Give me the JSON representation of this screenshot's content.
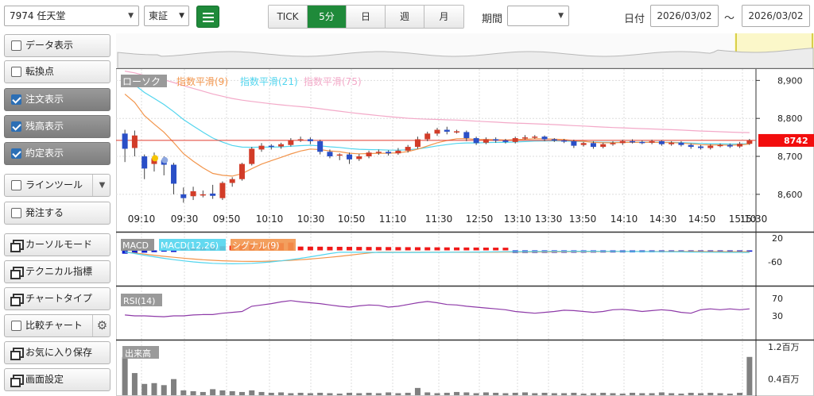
{
  "toolbar": {
    "symbol": "7974 任天堂",
    "market": "東証",
    "period_tabs": [
      {
        "label": "TICK",
        "active": false
      },
      {
        "label": "5分",
        "active": true
      },
      {
        "label": "日",
        "active": false
      },
      {
        "label": "週",
        "active": false
      },
      {
        "label": "月",
        "active": false
      }
    ],
    "period_label": "期間",
    "period_value": "",
    "date_label": "日付",
    "date_from": "2026/03/02",
    "date_sep": "～",
    "date_to": "2026/03/02"
  },
  "left_panel": {
    "items": [
      {
        "label": "データ表示",
        "kind": "checkbox",
        "checked": false
      },
      {
        "label": "転換点",
        "kind": "checkbox",
        "checked": false
      },
      {
        "label": "注文表示",
        "kind": "checkbox",
        "checked": true
      },
      {
        "label": "残高表示",
        "kind": "checkbox",
        "checked": true
      },
      {
        "label": "約定表示",
        "kind": "checkbox",
        "checked": true
      },
      {
        "label": "ラインツール",
        "kind": "checkbox",
        "checked": false
      },
      {
        "label": "発注する",
        "kind": "checkbox",
        "checked": false
      },
      {
        "label": "カーソルモード",
        "kind": "window"
      },
      {
        "label": "テクニカル指標",
        "kind": "window"
      },
      {
        "label": "チャートタイプ",
        "kind": "window"
      },
      {
        "label": "比較チャート",
        "kind": "checkbox",
        "checked": false
      },
      {
        "label": "お気に入り保存",
        "kind": "window"
      },
      {
        "label": "画面設定",
        "kind": "window"
      }
    ]
  },
  "chart": {
    "price_legend": [
      "ローソク",
      "指数平滑(9)",
      "指数平滑(21)",
      "指数平滑(75)"
    ],
    "macd_legend": [
      "MACD",
      "MACD(12,26)",
      "シグナル(9)"
    ],
    "rsi_legend": "RSI(14)",
    "volume_legend": "出来高",
    "price_badge": "8742",
    "colors": {
      "up": "#d23c28",
      "down": "#2a4fc7",
      "ema9": "#f2954c",
      "ema21": "#52d5ee",
      "ema75": "#f3a9c8",
      "rsi": "#8e3aa8",
      "volume": "#808080"
    }
  },
  "chart_data": {
    "type": "candlestick",
    "price_axis_ticks": [
      "8,900",
      "8,800",
      "8,700",
      "8,600"
    ],
    "time_axis_ticks": [
      "09:10",
      "09:30",
      "09:50",
      "10:10",
      "10:30",
      "10:50",
      "11:10",
      "11:30",
      "12:50",
      "13:10",
      "13:30",
      "13:50",
      "14:10",
      "14:30",
      "14:50",
      "15:10",
      "15:30"
    ],
    "current_price": 8742,
    "macd_ticks": [
      "20",
      "-60"
    ],
    "rsi_ticks": [
      "70",
      "30"
    ],
    "volume_ticks": [
      "1.2百万",
      "0.4百万"
    ],
    "ylim": [
      8560,
      8930
    ],
    "candles": [
      {
        "o": 8760,
        "c": 8720,
        "h": 8770,
        "l": 8685
      },
      {
        "o": 8722,
        "c": 8755,
        "h": 8768,
        "l": 8700
      },
      {
        "o": 8700,
        "c": 8668,
        "h": 8705,
        "l": 8640
      },
      {
        "o": 8680,
        "c": 8695,
        "h": 8710,
        "l": 8660
      },
      {
        "o": 8690,
        "c": 8678,
        "h": 8700,
        "l": 8650
      },
      {
        "o": 8678,
        "c": 8628,
        "h": 8683,
        "l": 8600
      },
      {
        "o": 8600,
        "c": 8590,
        "h": 8618,
        "l": 8578
      },
      {
        "o": 8595,
        "c": 8608,
        "h": 8620,
        "l": 8585
      },
      {
        "o": 8598,
        "c": 8600,
        "h": 8610,
        "l": 8592
      },
      {
        "o": 8602,
        "c": 8596,
        "h": 8625,
        "l": 8588
      },
      {
        "o": 8590,
        "c": 8630,
        "h": 8634,
        "l": 8585
      },
      {
        "o": 8630,
        "c": 8640,
        "h": 8645,
        "l": 8620
      },
      {
        "o": 8640,
        "c": 8680,
        "h": 8683,
        "l": 8636
      },
      {
        "o": 8680,
        "c": 8720,
        "h": 8725,
        "l": 8676
      },
      {
        "o": 8718,
        "c": 8728,
        "h": 8735,
        "l": 8712
      },
      {
        "o": 8728,
        "c": 8725,
        "h": 8732,
        "l": 8718
      },
      {
        "o": 8726,
        "c": 8732,
        "h": 8736,
        "l": 8720
      },
      {
        "o": 8730,
        "c": 8742,
        "h": 8748,
        "l": 8726
      },
      {
        "o": 8742,
        "c": 8745,
        "h": 8752,
        "l": 8738
      },
      {
        "o": 8745,
        "c": 8740,
        "h": 8750,
        "l": 8732
      },
      {
        "o": 8740,
        "c": 8712,
        "h": 8744,
        "l": 8705
      },
      {
        "o": 8712,
        "c": 8700,
        "h": 8718,
        "l": 8695
      },
      {
        "o": 8702,
        "c": 8705,
        "h": 8708,
        "l": 8690
      },
      {
        "o": 8705,
        "c": 8692,
        "h": 8710,
        "l": 8680
      },
      {
        "o": 8693,
        "c": 8700,
        "h": 8706,
        "l": 8688
      },
      {
        "o": 8700,
        "c": 8710,
        "h": 8715,
        "l": 8695
      },
      {
        "o": 8710,
        "c": 8712,
        "h": 8718,
        "l": 8704
      },
      {
        "o": 8712,
        "c": 8708,
        "h": 8716,
        "l": 8702
      },
      {
        "o": 8708,
        "c": 8715,
        "h": 8722,
        "l": 8704
      },
      {
        "o": 8715,
        "c": 8725,
        "h": 8730,
        "l": 8710
      },
      {
        "o": 8725,
        "c": 8745,
        "h": 8752,
        "l": 8720
      },
      {
        "o": 8745,
        "c": 8760,
        "h": 8765,
        "l": 8740
      },
      {
        "o": 8760,
        "c": 8770,
        "h": 8775,
        "l": 8754
      },
      {
        "o": 8770,
        "c": 8765,
        "h": 8778,
        "l": 8758
      },
      {
        "o": 8765,
        "c": 8766,
        "h": 8770,
        "l": 8760
      },
      {
        "o": 8764,
        "c": 8748,
        "h": 8768,
        "l": 8740
      },
      {
        "o": 8748,
        "c": 8735,
        "h": 8752,
        "l": 8730
      },
      {
        "o": 8736,
        "c": 8745,
        "h": 8750,
        "l": 8732
      },
      {
        "o": 8745,
        "c": 8742,
        "h": 8750,
        "l": 8736
      },
      {
        "o": 8742,
        "c": 8738,
        "h": 8746,
        "l": 8734
      },
      {
        "o": 8738,
        "c": 8748,
        "h": 8752,
        "l": 8734
      },
      {
        "o": 8748,
        "c": 8750,
        "h": 8756,
        "l": 8744
      },
      {
        "o": 8750,
        "c": 8752,
        "h": 8756,
        "l": 8746
      },
      {
        "o": 8752,
        "c": 8745,
        "h": 8755,
        "l": 8740
      },
      {
        "o": 8745,
        "c": 8742,
        "h": 8748,
        "l": 8738
      },
      {
        "o": 8742,
        "c": 8740,
        "h": 8746,
        "l": 8735
      },
      {
        "o": 8740,
        "c": 8728,
        "h": 8744,
        "l": 8722
      },
      {
        "o": 8730,
        "c": 8735,
        "h": 8738,
        "l": 8726
      },
      {
        "o": 8735,
        "c": 8725,
        "h": 8740,
        "l": 8720
      },
      {
        "o": 8725,
        "c": 8732,
        "h": 8736,
        "l": 8721
      },
      {
        "o": 8732,
        "c": 8735,
        "h": 8740,
        "l": 8728
      },
      {
        "o": 8735,
        "c": 8740,
        "h": 8744,
        "l": 8730
      },
      {
        "o": 8740,
        "c": 8738,
        "h": 8745,
        "l": 8734
      },
      {
        "o": 8738,
        "c": 8736,
        "h": 8742,
        "l": 8732
      },
      {
        "o": 8736,
        "c": 8740,
        "h": 8744,
        "l": 8732
      },
      {
        "o": 8740,
        "c": 8732,
        "h": 8743,
        "l": 8728
      },
      {
        "o": 8732,
        "c": 8736,
        "h": 8740,
        "l": 8728
      },
      {
        "o": 8736,
        "c": 8730,
        "h": 8740,
        "l": 8726
      },
      {
        "o": 8730,
        "c": 8725,
        "h": 8734,
        "l": 8720
      },
      {
        "o": 8726,
        "c": 8722,
        "h": 8730,
        "l": 8718
      },
      {
        "o": 8722,
        "c": 8728,
        "h": 8732,
        "l": 8718
      },
      {
        "o": 8728,
        "c": 8730,
        "h": 8734,
        "l": 8724
      },
      {
        "o": 8730,
        "c": 8726,
        "h": 8734,
        "l": 8722
      },
      {
        "o": 8726,
        "c": 8733,
        "h": 8738,
        "l": 8722
      },
      {
        "o": 8733,
        "c": 8742,
        "h": 8746,
        "l": 8730
      }
    ],
    "volume": [
      0.95,
      0.55,
      0.28,
      0.3,
      0.25,
      0.4,
      0.12,
      0.1,
      0.08,
      0.15,
      0.12,
      0.1,
      0.08,
      0.12,
      0.08,
      0.06,
      0.07,
      0.05,
      0.06,
      0.05,
      0.06,
      0.05,
      0.04,
      0.06,
      0.05,
      0.06,
      0.05,
      0.07,
      0.05,
      0.06,
      0.18,
      0.07,
      0.05,
      0.06,
      0.08,
      0.07,
      0.05,
      0.07,
      0.06,
      0.05,
      0.06,
      0.07,
      0.05,
      0.06,
      0.05,
      0.05,
      0.06,
      0.04,
      0.05,
      0.06,
      0.05,
      0.04,
      0.06,
      0.05,
      0.05,
      0.07,
      0.05,
      0.04,
      0.06,
      0.05,
      0.06,
      0.05,
      0.04,
      0.06,
      0.95
    ],
    "rsi": [
      32,
      30,
      30,
      29,
      28,
      30,
      30,
      32,
      33,
      33,
      36,
      38,
      40,
      52,
      55,
      58,
      62,
      65,
      62,
      60,
      58,
      55,
      52,
      50,
      53,
      55,
      54,
      50,
      52,
      56,
      60,
      63,
      60,
      56,
      55,
      52,
      50,
      48,
      46,
      44,
      40,
      38,
      36,
      38,
      40,
      43,
      42,
      40,
      38,
      40,
      44,
      45,
      43,
      40,
      42,
      44,
      42,
      38,
      36,
      44,
      46,
      44,
      46,
      44,
      46
    ]
  }
}
